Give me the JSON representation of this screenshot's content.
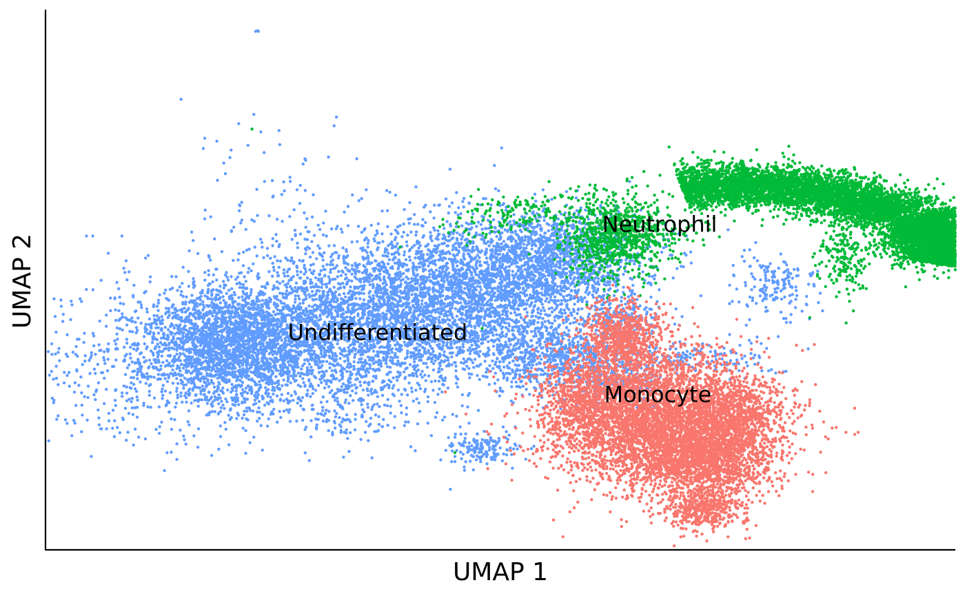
{
  "chart_data": {
    "type": "scatter",
    "title": "",
    "xlabel": "UMAP 1",
    "ylabel": "UMAP 2",
    "xlim": [
      0,
      100
    ],
    "ylim": [
      0,
      100
    ],
    "grid": false,
    "legend": "none",
    "series": [
      {
        "name": "Undifferentiated",
        "color": "#619CFF",
        "label_at": [
          36.5,
          40.0
        ],
        "clusters": [
          {
            "cx": 30.0,
            "cy": 39.5,
            "sx": 13.5,
            "sy": 6.8,
            "rot": 14,
            "n": 4200
          },
          {
            "cx": 46.0,
            "cy": 48.5,
            "sx": 8.5,
            "sy": 6.5,
            "rot": 20,
            "n": 2600
          },
          {
            "cx": 20.0,
            "cy": 38.5,
            "sx": 4.0,
            "sy": 4.6,
            "rot": 0,
            "n": 1400
          },
          {
            "cx": 56.0,
            "cy": 54.0,
            "sx": 5.0,
            "sy": 4.2,
            "rot": 10,
            "n": 900
          },
          {
            "cx": 55.5,
            "cy": 36.0,
            "sx": 4.0,
            "sy": 3.5,
            "rot": 0,
            "n": 600
          },
          {
            "cx": 62.0,
            "cy": 32.0,
            "sx": 3.0,
            "sy": 3.0,
            "rot": 0,
            "n": 300
          },
          {
            "cx": 48.0,
            "cy": 19.0,
            "sx": 2.0,
            "sy": 1.6,
            "rot": 0,
            "n": 160
          },
          {
            "cx": 80.5,
            "cy": 49.0,
            "sx": 2.5,
            "sy": 3.0,
            "rot": 0,
            "n": 160
          },
          {
            "cx": 72.5,
            "cy": 35.0,
            "sx": 4.0,
            "sy": 1.8,
            "rot": 0,
            "n": 140
          },
          {
            "cx": 63.5,
            "cy": 42.0,
            "sx": 2.2,
            "sy": 2.2,
            "rot": 0,
            "n": 120
          },
          {
            "cx": 25.0,
            "cy": 60.0,
            "sx": 4.0,
            "sy": 8.0,
            "rot": 0,
            "n": 110
          },
          {
            "cx": 33.0,
            "cy": 24.0,
            "sx": 4.0,
            "sy": 2.5,
            "rot": 0,
            "n": 90
          }
        ],
        "points": [
          [
            23.1,
            96.0
          ],
          [
            23.4,
            96.0
          ],
          [
            23.3,
            96.1
          ],
          [
            14.9,
            83.4
          ],
          [
            22.9,
            80.6
          ],
          [
            17.5,
            76.2
          ],
          [
            20.4,
            74.0
          ],
          [
            31.1,
            72.7
          ],
          [
            28.6,
            72.1
          ],
          [
            19.6,
            71.6
          ],
          [
            4.5,
            58.1
          ],
          [
            5.2,
            58.1
          ],
          [
            8.4,
            58.1
          ],
          [
            6.9,
            54.9
          ],
          [
            11.0,
            54.0
          ],
          [
            11.5,
            49.6
          ],
          [
            44.5,
            11.2
          ],
          [
            50.0,
            60.0
          ]
        ]
      },
      {
        "name": "Neutrophil",
        "color": "#00BA38",
        "label_at": [
          67.5,
          60.0
        ],
        "clusters": [
          {
            "arc": true,
            "cx": 75.0,
            "cy": 55.0,
            "rx": 22.5,
            "ry": 12.5,
            "t0": 0.6,
            "t1": 1.8,
            "w": 2.0,
            "n": 4300
          },
          {
            "arc": true,
            "cx": 82.0,
            "cy": 55.5,
            "rx": 17.0,
            "ry": 11.0,
            "t0": -0.25,
            "t1": 0.6,
            "w": 1.9,
            "n": 2600
          },
          {
            "cx": 95.5,
            "cy": 59.0,
            "sx": 2.0,
            "sy": 3.0,
            "rot": 0,
            "n": 1200
          },
          {
            "cx": 62.0,
            "cy": 58.0,
            "sx": 2.5,
            "sy": 4.0,
            "rot": 0,
            "n": 700
          },
          {
            "cx": 66.0,
            "cy": 58.5,
            "sx": 3.0,
            "sy": 2.5,
            "rot": 0,
            "n": 250
          },
          {
            "cx": 88.0,
            "cy": 55.0,
            "sx": 1.5,
            "sy": 4.0,
            "rot": 0,
            "n": 200
          },
          {
            "cx": 52.0,
            "cy": 62.0,
            "sx": 4.0,
            "sy": 2.0,
            "rot": 15,
            "n": 160
          }
        ],
        "points": [
          [
            22.7,
            77.9
          ],
          [
            45.0,
            18.0
          ],
          [
            48.0,
            41.0
          ],
          [
            84.0,
            43.0
          ],
          [
            88.0,
            42.0
          ]
        ]
      },
      {
        "name": "Monocyte",
        "color": "#F8766D",
        "label_at": [
          67.3,
          28.5
        ],
        "clusters": [
          {
            "cx": 67.0,
            "cy": 24.5,
            "sx": 6.0,
            "sy": 6.0,
            "rot": 0,
            "n": 4000
          },
          {
            "cx": 72.0,
            "cy": 16.5,
            "sx": 4.0,
            "sy": 3.5,
            "rot": 0,
            "n": 1500
          },
          {
            "cx": 63.5,
            "cy": 39.5,
            "sx": 2.2,
            "sy": 3.2,
            "rot": 0,
            "n": 700
          },
          {
            "cx": 75.5,
            "cy": 25.0,
            "sx": 2.5,
            "sy": 3.5,
            "rot": 0,
            "n": 700
          },
          {
            "cx": 59.5,
            "cy": 28.5,
            "sx": 2.5,
            "sy": 4.0,
            "rot": 0,
            "n": 500
          },
          {
            "cx": 72.5,
            "cy": 7.5,
            "sx": 2.2,
            "sy": 2.0,
            "rot": 0,
            "n": 400
          }
        ],
        "points": [
          [
            84.5,
            38.0
          ],
          [
            83.2,
            36.9
          ],
          [
            48.8,
            33.0
          ]
        ]
      }
    ]
  }
}
